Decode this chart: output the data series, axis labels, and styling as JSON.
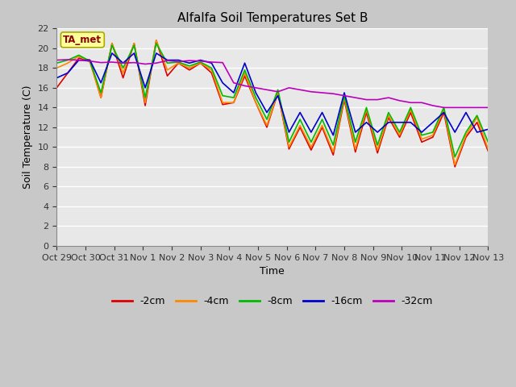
{
  "title": "Alfalfa Soil Temperatures Set B",
  "xlabel": "Time",
  "ylabel": "Soil Temperature (C)",
  "ylim": [
    0,
    22
  ],
  "yticks": [
    0,
    2,
    4,
    6,
    8,
    10,
    12,
    14,
    16,
    18,
    20,
    22
  ],
  "xtick_labels": [
    "Oct 29",
    "Oct 30",
    "Oct 31",
    "Nov 1",
    "Nov 2",
    "Nov 3",
    "Nov 4",
    "Nov 5",
    "Nov 6",
    "Nov 7",
    "Nov 8",
    "Nov 9",
    "Nov 10",
    "Nov 11",
    "Nov 12",
    "Nov 13"
  ],
  "figure_bg_color": "#c8c8c8",
  "plot_bg_color": "#e8e8e8",
  "grid_color": "#ffffff",
  "annotation_text": "TA_met",
  "annotation_color": "#8b0000",
  "annotation_bg": "#ffff99",
  "annotation_edge": "#aaaa00",
  "legend_labels": [
    "-2cm",
    "-4cm",
    "-8cm",
    "-16cm",
    "-32cm"
  ],
  "line_colors": [
    "#dd0000",
    "#ff8800",
    "#00bb00",
    "#0000cc",
    "#bb00bb"
  ],
  "line_widths": [
    1.2,
    1.2,
    1.2,
    1.2,
    1.2
  ],
  "series_2cm": [
    16.0,
    17.5,
    19.0,
    18.8,
    15.0,
    20.5,
    17.0,
    20.5,
    14.2,
    20.8,
    17.2,
    18.5,
    17.8,
    18.5,
    17.5,
    14.3,
    14.5,
    17.2,
    14.5,
    12.0,
    15.5,
    9.8,
    12.0,
    9.7,
    12.0,
    9.2,
    14.8,
    9.5,
    13.5,
    9.4,
    13.0,
    11.0,
    13.5,
    10.5,
    11.0,
    13.5,
    8.0,
    11.0,
    12.5,
    9.6
  ],
  "series_4cm": [
    18.0,
    18.5,
    19.2,
    18.6,
    15.0,
    20.5,
    17.5,
    20.5,
    14.5,
    20.8,
    17.8,
    18.5,
    18.0,
    18.5,
    17.8,
    14.5,
    14.5,
    17.5,
    14.5,
    12.2,
    15.5,
    10.0,
    12.2,
    10.0,
    12.2,
    9.5,
    15.0,
    9.8,
    13.8,
    9.7,
    13.2,
    11.2,
    13.8,
    10.8,
    11.2,
    13.8,
    8.2,
    11.2,
    13.0,
    9.8
  ],
  "series_8cm": [
    18.5,
    18.8,
    19.3,
    18.7,
    15.5,
    20.3,
    18.0,
    20.3,
    15.0,
    20.5,
    18.5,
    18.6,
    18.2,
    18.6,
    18.0,
    15.2,
    15.0,
    17.8,
    15.0,
    12.8,
    15.8,
    10.5,
    12.8,
    10.5,
    12.8,
    10.2,
    15.2,
    10.5,
    14.0,
    10.2,
    13.5,
    11.5,
    14.0,
    11.2,
    11.5,
    14.0,
    9.0,
    11.5,
    13.2,
    10.5
  ],
  "series_16cm": [
    17.0,
    17.5,
    18.8,
    18.8,
    16.5,
    19.5,
    18.5,
    19.5,
    16.0,
    19.5,
    18.8,
    18.8,
    18.5,
    18.8,
    18.5,
    16.5,
    15.5,
    18.5,
    15.5,
    13.5,
    15.2,
    11.5,
    13.5,
    11.5,
    13.5,
    11.2,
    15.5,
    11.5,
    12.5,
    11.5,
    12.5,
    12.5,
    12.5,
    11.5,
    12.5,
    13.5,
    11.5,
    13.5,
    11.5,
    11.8
  ],
  "series_32cm": [
    18.8,
    18.85,
    18.8,
    18.7,
    18.55,
    18.6,
    18.5,
    18.55,
    18.4,
    18.5,
    18.75,
    18.65,
    18.75,
    18.7,
    18.6,
    18.55,
    16.5,
    16.2,
    16.0,
    15.8,
    15.6,
    16.0,
    15.8,
    15.6,
    15.5,
    15.4,
    15.2,
    15.0,
    14.8,
    14.8,
    15.0,
    14.7,
    14.5,
    14.5,
    14.2,
    14.0,
    14.0,
    14.0,
    14.0,
    14.0
  ]
}
